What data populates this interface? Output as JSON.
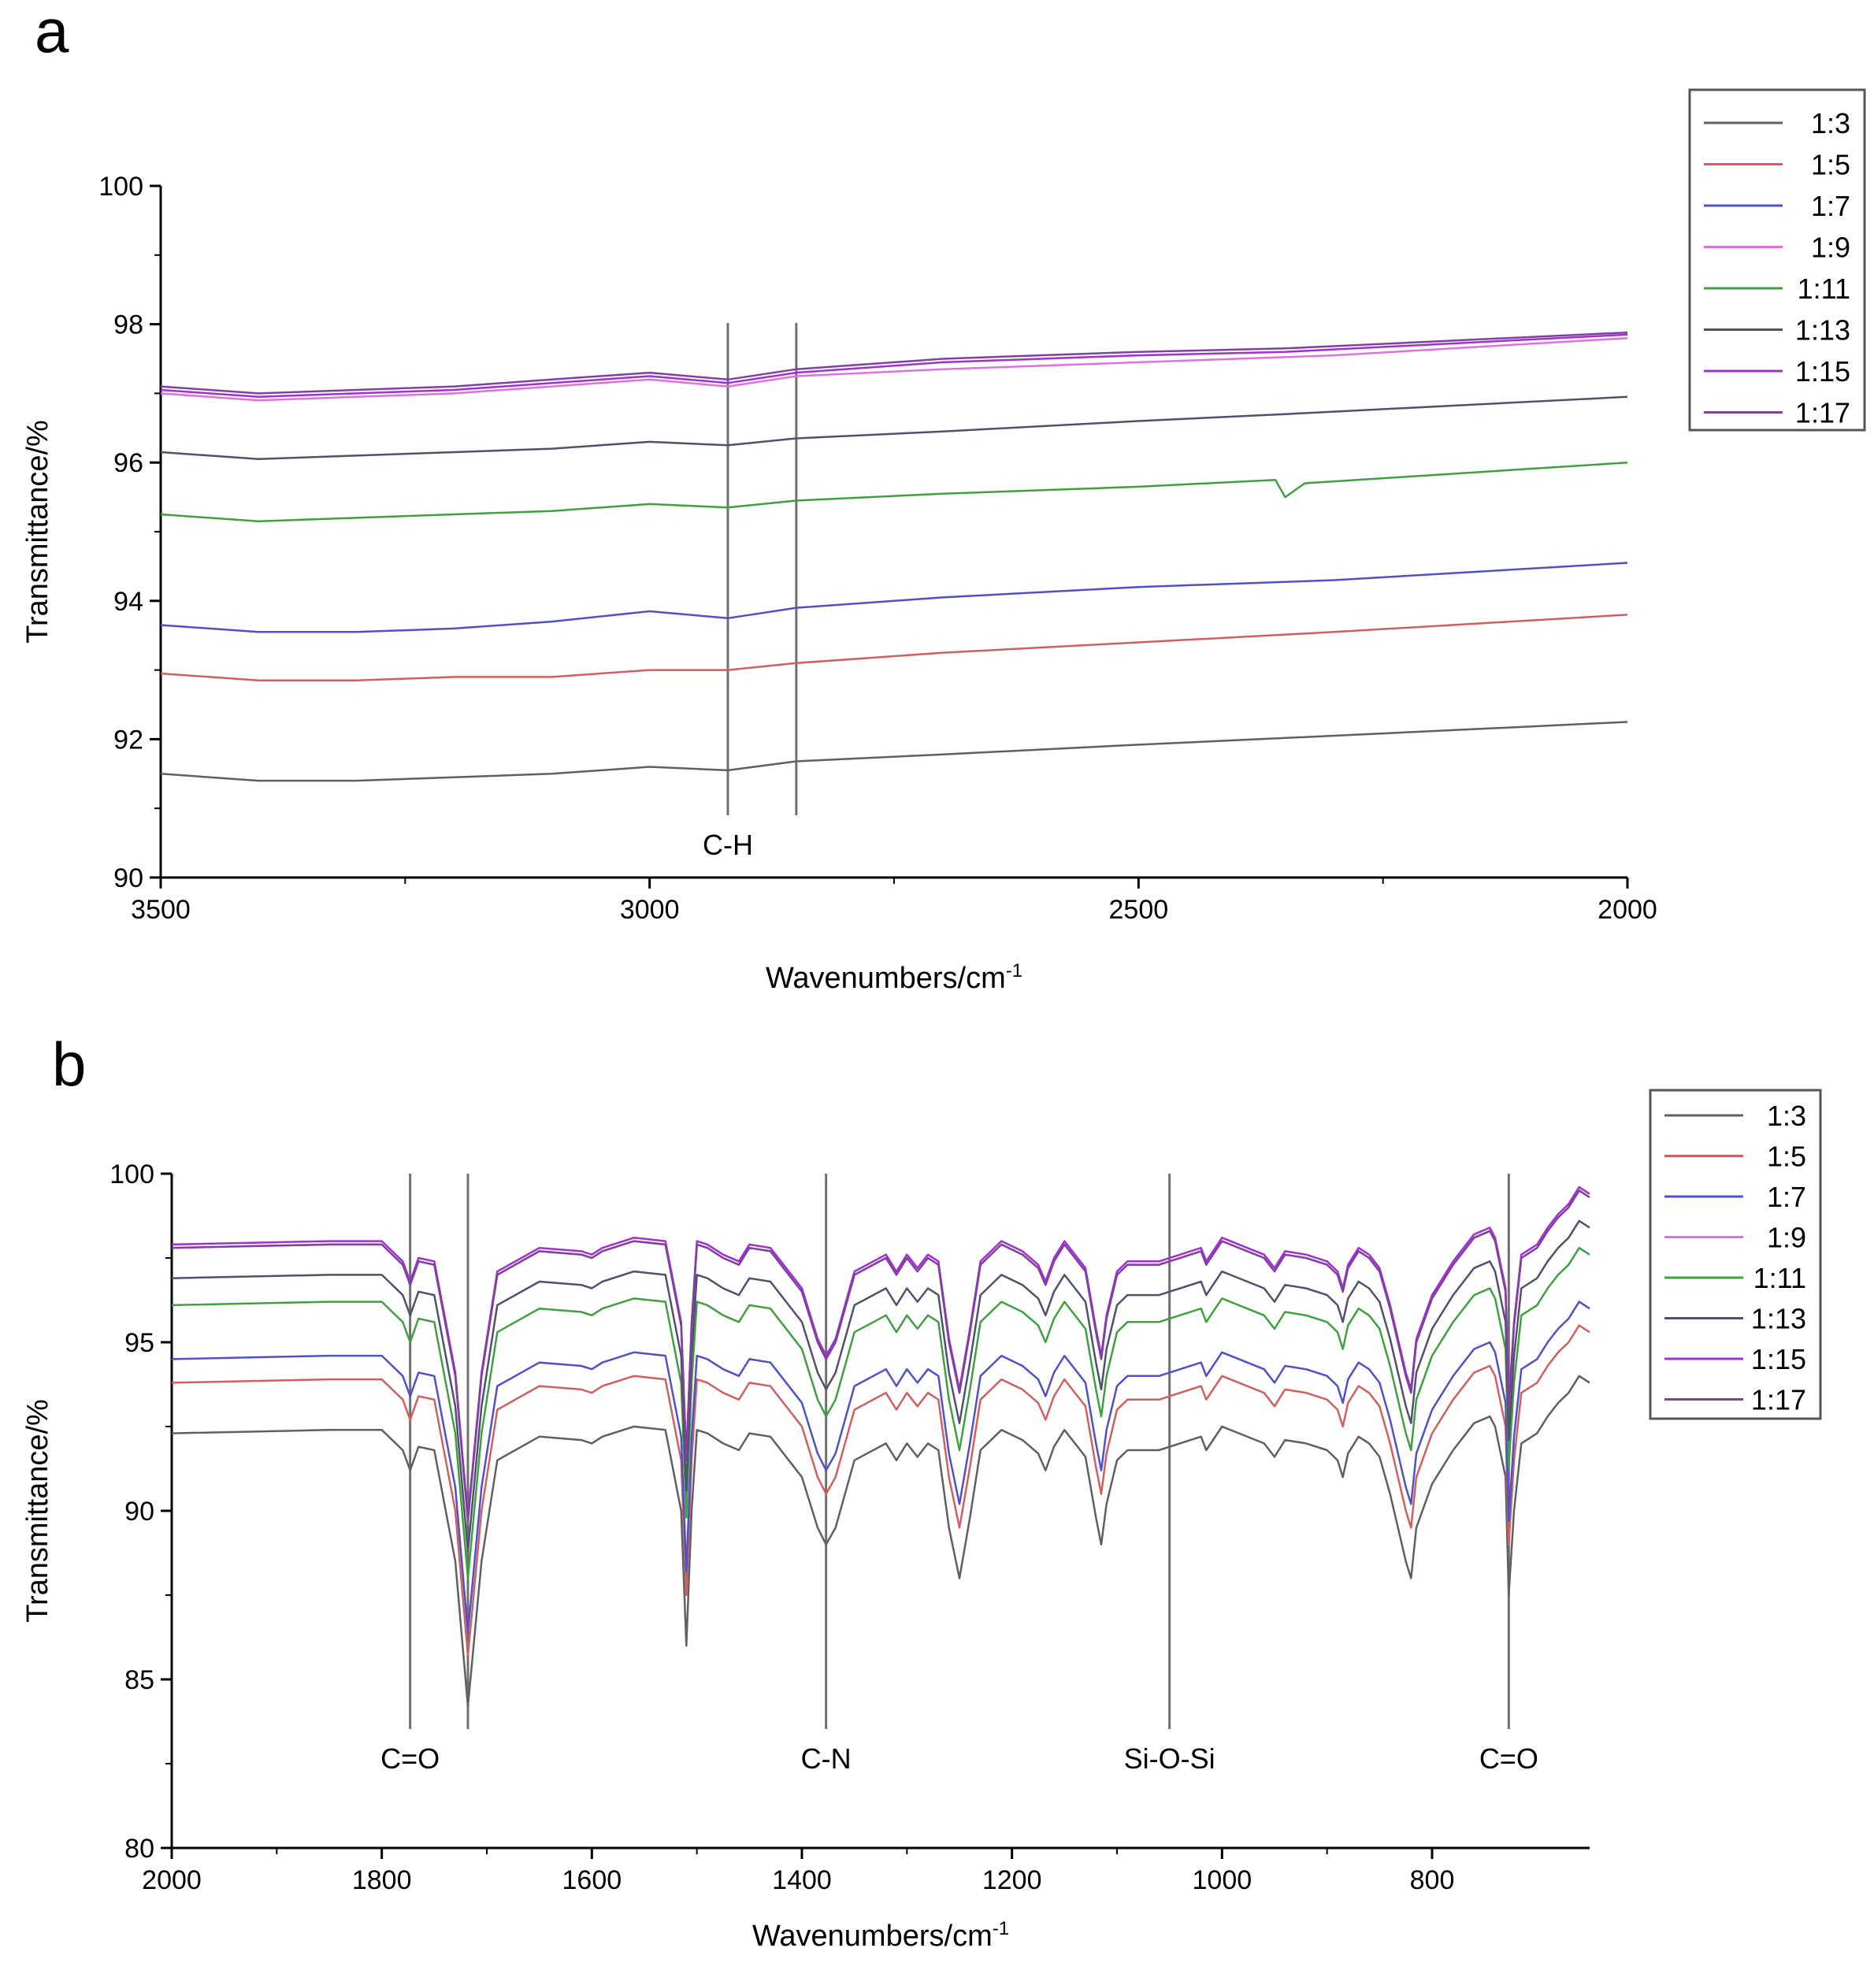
{
  "panel_labels": [
    "a",
    "b"
  ],
  "chart_data": [
    {
      "type": "line",
      "panel": "a",
      "title": "",
      "xlabel": "Wavenumbers/cm",
      "xlabel_sup": "-1",
      "ylabel": "Transmittance/%",
      "xlim": [
        3500,
        2000
      ],
      "ylim": [
        90,
        100
      ],
      "x_ticks": [
        3500,
        3000,
        2500,
        2000
      ],
      "y_ticks": [
        90,
        92,
        94,
        96,
        98,
        100
      ],
      "legend_position": "top-right",
      "markers": [
        {
          "x": 2920,
          "label": "C-H"
        },
        {
          "x": 2850,
          "label": ""
        }
      ],
      "series": [
        {
          "name": "1:3",
          "color": "#606060",
          "x": [
            3500,
            3400,
            3300,
            3200,
            3100,
            3000,
            2920,
            2850,
            2700,
            2500,
            2300,
            2000
          ],
          "y": [
            91.5,
            91.4,
            91.4,
            91.45,
            91.5,
            91.6,
            91.55,
            91.68,
            91.78,
            91.92,
            92.05,
            92.25
          ]
        },
        {
          "name": "1:5",
          "color": "#d06060",
          "x": [
            3500,
            3400,
            3300,
            3200,
            3100,
            3000,
            2920,
            2850,
            2700,
            2500,
            2300,
            2000
          ],
          "y": [
            92.95,
            92.85,
            92.85,
            92.9,
            92.9,
            93.0,
            93.0,
            93.1,
            93.25,
            93.4,
            93.55,
            93.8
          ]
        },
        {
          "name": "1:7",
          "color": "#5050c8",
          "x": [
            3500,
            3400,
            3300,
            3200,
            3100,
            3000,
            2920,
            2850,
            2700,
            2500,
            2300,
            2000
          ],
          "y": [
            93.65,
            93.55,
            93.55,
            93.6,
            93.7,
            93.85,
            93.75,
            93.9,
            94.05,
            94.2,
            94.3,
            94.55
          ]
        },
        {
          "name": "1:9",
          "color": "#e070e0",
          "x": [
            3500,
            3400,
            3300,
            3200,
            3100,
            3000,
            2920,
            2850,
            2700,
            2500,
            2300,
            2000
          ],
          "y": [
            97.0,
            96.9,
            96.95,
            97.0,
            97.1,
            97.2,
            97.1,
            97.25,
            97.35,
            97.45,
            97.55,
            97.8
          ]
        },
        {
          "name": "1:11",
          "color": "#40a040",
          "x": [
            3500,
            3400,
            3300,
            3200,
            3100,
            3000,
            2920,
            2850,
            2700,
            2500,
            2360,
            2350,
            2330,
            2000
          ],
          "y": [
            95.25,
            95.15,
            95.2,
            95.25,
            95.3,
            95.4,
            95.35,
            95.45,
            95.55,
            95.65,
            95.75,
            95.5,
            95.7,
            96.0
          ]
        },
        {
          "name": "1:13",
          "color": "#505070",
          "x": [
            3500,
            3400,
            3300,
            3200,
            3100,
            3000,
            2920,
            2850,
            2700,
            2500,
            2350,
            2000
          ],
          "y": [
            96.15,
            96.05,
            96.1,
            96.15,
            96.2,
            96.3,
            96.25,
            96.35,
            96.45,
            96.6,
            96.7,
            96.95
          ]
        },
        {
          "name": "1:15",
          "color": "#a030d0",
          "x": [
            3500,
            3400,
            3300,
            3200,
            3100,
            3000,
            2920,
            2850,
            2700,
            2500,
            2350,
            2000
          ],
          "y": [
            97.05,
            96.95,
            97.0,
            97.05,
            97.15,
            97.25,
            97.15,
            97.3,
            97.45,
            97.55,
            97.6,
            97.85
          ]
        },
        {
          "name": "1:17",
          "color": "#8040a0",
          "x": [
            3500,
            3400,
            3300,
            3200,
            3100,
            3000,
            2920,
            2850,
            2700,
            2500,
            2350,
            2000
          ],
          "y": [
            97.1,
            97.0,
            97.05,
            97.1,
            97.2,
            97.3,
            97.2,
            97.35,
            97.5,
            97.6,
            97.65,
            97.88
          ]
        }
      ],
      "legend": [
        "1:3",
        "1:5",
        "1:7",
        "1:9",
        "1:11",
        "1:13",
        "1:15",
        "1:17"
      ],
      "annotations": [
        "C-H"
      ]
    },
    {
      "type": "line",
      "panel": "b",
      "title": "",
      "xlabel": "Wavenumbers/cm",
      "xlabel_sup": "-1",
      "ylabel": "Transmittance/%",
      "xlim": [
        2000,
        650
      ],
      "ylim": [
        80,
        100
      ],
      "x_ticks": [
        2000,
        1800,
        1600,
        1400,
        1200,
        1000,
        800
      ],
      "y_ticks": [
        80,
        85,
        90,
        95,
        100
      ],
      "legend_position": "top-right",
      "markers": [
        {
          "x": 1773,
          "label": "C=O"
        },
        {
          "x": 1718,
          "label": ""
        },
        {
          "x": 1377,
          "label": "C-N"
        },
        {
          "x": 1050,
          "label": "Si-O-Si"
        },
        {
          "x": 727,
          "label": "C=O"
        }
      ],
      "offsets": [
        0,
        1.5,
        2.2,
        5.5,
        3.8,
        4.6,
        5.6,
        5.5
      ],
      "base_shape_1to3": {
        "x": [
          2000,
          1850,
          1800,
          1780,
          1773,
          1765,
          1750,
          1730,
          1718,
          1705,
          1690,
          1650,
          1610,
          1600,
          1590,
          1560,
          1530,
          1515,
          1510,
          1505,
          1500,
          1490,
          1475,
          1460,
          1450,
          1430,
          1400,
          1385,
          1377,
          1368,
          1350,
          1320,
          1310,
          1300,
          1290,
          1280,
          1270,
          1260,
          1250,
          1240,
          1230,
          1210,
          1190,
          1175,
          1168,
          1160,
          1150,
          1130,
          1120,
          1115,
          1110,
          1100,
          1090,
          1060,
          1020,
          1015,
          1000,
          960,
          950,
          940,
          920,
          900,
          890,
          885,
          880,
          870,
          860,
          850,
          840,
          825,
          820,
          815,
          800,
          780,
          760,
          745,
          740,
          730,
          727,
          722,
          715,
          700,
          690,
          680,
          670,
          660,
          650
        ],
        "y": [
          92.3,
          92.4,
          92.4,
          91.8,
          91.2,
          91.9,
          91.8,
          88.5,
          84.2,
          88.5,
          91.5,
          92.2,
          92.1,
          92.0,
          92.2,
          92.5,
          92.4,
          90.0,
          86.0,
          90.0,
          92.4,
          92.3,
          92.0,
          91.8,
          92.3,
          92.2,
          91.0,
          89.5,
          89.0,
          89.5,
          91.5,
          92.0,
          91.5,
          92.0,
          91.6,
          92.0,
          91.8,
          89.5,
          88.0,
          89.8,
          91.8,
          92.4,
          92.1,
          91.7,
          91.2,
          91.9,
          92.4,
          91.6,
          89.8,
          89.0,
          90.2,
          91.5,
          91.8,
          91.8,
          92.2,
          91.8,
          92.5,
          92.0,
          91.6,
          92.1,
          92.0,
          91.8,
          91.5,
          91.0,
          91.7,
          92.2,
          92.0,
          91.6,
          90.5,
          88.5,
          88.0,
          89.5,
          90.8,
          91.8,
          92.6,
          92.8,
          92.5,
          91.0,
          87.5,
          90.0,
          92.0,
          92.3,
          92.8,
          93.2,
          93.5,
          94.0,
          93.8
        ]
      },
      "series": [
        {
          "name": "1:3",
          "color": "#606060"
        },
        {
          "name": "1:5",
          "color": "#d06060"
        },
        {
          "name": "1:7",
          "color": "#5050c8"
        },
        {
          "name": "1:9",
          "color": "#e070e0"
        },
        {
          "name": "1:11",
          "color": "#40a040"
        },
        {
          "name": "1:13",
          "color": "#505070"
        },
        {
          "name": "1:15",
          "color": "#a030d0"
        },
        {
          "name": "1:17",
          "color": "#8040a0"
        }
      ],
      "legend": [
        "1:3",
        "1:5",
        "1:7",
        "1:9",
        "1:11",
        "1:13",
        "1:15",
        "1:17"
      ],
      "annotations": [
        "C=O",
        "C-N",
        "Si-O-Si",
        "C=O"
      ]
    }
  ]
}
